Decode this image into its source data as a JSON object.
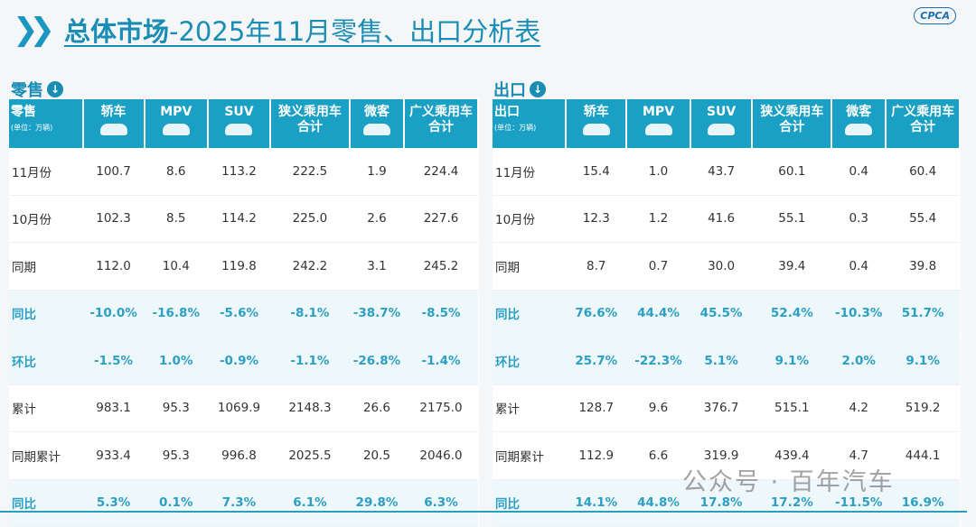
{
  "title": {
    "bold": "总体市场",
    "rest": "-2025年11月零售、出口分析表"
  },
  "logo": "CPCA",
  "columns": [
    "轿车",
    "MPV",
    "SUV",
    "狭义乘用车\n合计",
    "微客",
    "广义乘用车\n合计"
  ],
  "unit": "(单位：万辆)",
  "retail": {
    "section": "零售",
    "corner": "零售",
    "rows": [
      {
        "label": "11月份",
        "v": [
          "100.7",
          "8.6",
          "113.2",
          "222.5",
          "1.9",
          "224.4"
        ]
      },
      {
        "label": "10月份",
        "v": [
          "102.3",
          "8.5",
          "114.2",
          "225.0",
          "2.6",
          "227.6"
        ]
      },
      {
        "label": "同期",
        "v": [
          "112.0",
          "10.4",
          "119.8",
          "242.2",
          "3.1",
          "245.2"
        ]
      },
      {
        "label": "同比",
        "hl": true,
        "v": [
          "-10.0%",
          "-16.8%",
          "-5.6%",
          "-8.1%",
          "-38.7%",
          "-8.5%"
        ]
      },
      {
        "label": "环比",
        "hl": true,
        "v": [
          "-1.5%",
          "1.0%",
          "-0.9%",
          "-1.1%",
          "-26.8%",
          "-1.4%"
        ]
      },
      {
        "label": "累计",
        "v": [
          "983.1",
          "95.3",
          "1069.9",
          "2148.3",
          "26.6",
          "2175.0"
        ]
      },
      {
        "label": "同期累计",
        "v": [
          "933.4",
          "95.3",
          "996.8",
          "2025.5",
          "20.5",
          "2046.0"
        ]
      },
      {
        "label": "同比",
        "hl": true,
        "v": [
          "5.3%",
          "0.1%",
          "7.3%",
          "6.1%",
          "29.8%",
          "6.3%"
        ]
      }
    ]
  },
  "export": {
    "section": "出口",
    "corner": "出口",
    "rows": [
      {
        "label": "11月份",
        "v": [
          "15.4",
          "1.0",
          "43.7",
          "60.1",
          "0.4",
          "60.4"
        ]
      },
      {
        "label": "10月份",
        "v": [
          "12.3",
          "1.2",
          "41.6",
          "55.1",
          "0.3",
          "55.4"
        ]
      },
      {
        "label": "同期",
        "v": [
          "8.7",
          "0.7",
          "30.0",
          "39.4",
          "0.4",
          "39.8"
        ]
      },
      {
        "label": "同比",
        "hl": true,
        "v": [
          "76.6%",
          "44.4%",
          "45.5%",
          "52.4%",
          "-10.3%",
          "51.7%"
        ]
      },
      {
        "label": "环比",
        "hl": true,
        "v": [
          "25.7%",
          "-22.3%",
          "5.1%",
          "9.1%",
          "2.0%",
          "9.1%"
        ]
      },
      {
        "label": "累计",
        "v": [
          "128.7",
          "9.6",
          "376.7",
          "515.1",
          "4.2",
          "519.2"
        ]
      },
      {
        "label": "同期累计",
        "v": [
          "112.9",
          "6.6",
          "319.9",
          "439.4",
          "4.7",
          "444.1"
        ]
      },
      {
        "label": "同比",
        "hl": true,
        "v": [
          "14.1%",
          "44.8%",
          "17.8%",
          "17.2%",
          "-11.5%",
          "16.9%"
        ]
      }
    ]
  },
  "watermark": "公众号 · 百年汽车"
}
